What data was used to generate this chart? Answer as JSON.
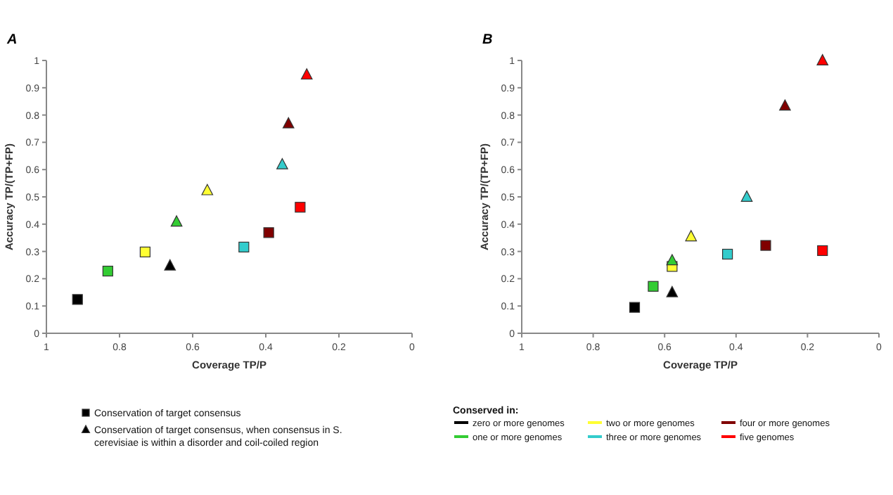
{
  "chart_data": [
    {
      "type": "scatter",
      "title": "A",
      "xlabel": "Coverage TP/P",
      "ylabel": "Accuracy TP/(TP+FP)",
      "xlim": [
        1,
        0
      ],
      "ylim": [
        0,
        1
      ],
      "xticks": [
        1,
        0.8,
        0.6,
        0.4,
        0.2,
        0
      ],
      "yticks": [
        0,
        0.1,
        0.2,
        0.3,
        0.4,
        0.5,
        0.6,
        0.7,
        0.8,
        0.9,
        1
      ],
      "grid": false,
      "legend": "bottom",
      "legend_title": "Conserved in:",
      "annotations": [
        "Conservation of target consensus",
        "Conservation of target consensus, when consensus in S. cerevisiae is within a disorder and coil-coiled region"
      ],
      "series": [
        {
          "name": "zero or more genomes",
          "color": "#000000",
          "marker": "square",
          "x": [
            0.915
          ],
          "values": [
            0.124
          ]
        },
        {
          "name": "one or more genomes",
          "color": "#33cc33",
          "marker": "square",
          "x": [
            0.832
          ],
          "values": [
            0.228
          ]
        },
        {
          "name": "two or more genomes",
          "color": "#ffff33",
          "marker": "square",
          "x": [
            0.73
          ],
          "values": [
            0.298
          ]
        },
        {
          "name": "three or more genomes",
          "color": "#33cccc",
          "marker": "square",
          "x": [
            0.46
          ],
          "values": [
            0.316
          ]
        },
        {
          "name": "four or more genomes",
          "color": "#800000",
          "marker": "square",
          "x": [
            0.392
          ],
          "values": [
            0.369
          ]
        },
        {
          "name": "five genomes",
          "color": "#ff0000",
          "marker": "square",
          "x": [
            0.306
          ],
          "values": [
            0.462
          ]
        },
        {
          "color": "#000000",
          "marker": "triangle",
          "x": [
            0.662
          ],
          "values": [
            0.248
          ]
        },
        {
          "color": "#33cc33",
          "marker": "triangle",
          "x": [
            0.644
          ],
          "values": [
            0.409
          ]
        },
        {
          "color": "#ffff33",
          "marker": "triangle",
          "x": [
            0.56
          ],
          "values": [
            0.524
          ]
        },
        {
          "color": "#33cccc",
          "marker": "triangle",
          "x": [
            0.355
          ],
          "values": [
            0.619
          ]
        },
        {
          "color": "#800000",
          "marker": "triangle",
          "x": [
            0.338
          ],
          "values": [
            0.769
          ]
        },
        {
          "color": "#ff0000",
          "marker": "triangle",
          "x": [
            0.288
          ],
          "values": [
            0.948
          ]
        }
      ]
    },
    {
      "type": "scatter",
      "title": "B",
      "xlabel": "Coverage TP/P",
      "ylabel": "Accuracy TP/(TP+FP)",
      "xlim": [
        1,
        0
      ],
      "ylim": [
        0,
        1
      ],
      "xticks": [
        1,
        0.8,
        0.6,
        0.4,
        0.2,
        0
      ],
      "yticks": [
        0,
        0.1,
        0.2,
        0.3,
        0.4,
        0.5,
        0.6,
        0.7,
        0.8,
        0.9,
        1
      ],
      "grid": false,
      "series": [
        {
          "color": "#000000",
          "marker": "square",
          "x": [
            0.684
          ],
          "values": [
            0.095
          ]
        },
        {
          "color": "#33cc33",
          "marker": "square",
          "x": [
            0.632
          ],
          "values": [
            0.172
          ]
        },
        {
          "color": "#ffff33",
          "marker": "square",
          "x": [
            0.579
          ],
          "values": [
            0.245
          ]
        },
        {
          "color": "#33cccc",
          "marker": "square",
          "x": [
            0.424
          ],
          "values": [
            0.29
          ]
        },
        {
          "color": "#800000",
          "marker": "square",
          "x": [
            0.317
          ],
          "values": [
            0.322
          ]
        },
        {
          "color": "#ff0000",
          "marker": "square",
          "x": [
            0.158
          ],
          "values": [
            0.303
          ]
        },
        {
          "color": "#000000",
          "marker": "triangle",
          "x": [
            0.579
          ],
          "values": [
            0.15
          ]
        },
        {
          "color": "#33cc33",
          "marker": "triangle",
          "x": [
            0.579
          ],
          "values": [
            0.267
          ]
        },
        {
          "color": "#ffff33",
          "marker": "triangle",
          "x": [
            0.526
          ],
          "values": [
            0.355
          ]
        },
        {
          "color": "#33cccc",
          "marker": "triangle",
          "x": [
            0.37
          ],
          "values": [
            0.5
          ]
        },
        {
          "color": "#800000",
          "marker": "triangle",
          "x": [
            0.263
          ],
          "values": [
            0.834
          ]
        },
        {
          "color": "#ff0000",
          "marker": "triangle",
          "x": [
            0.158
          ],
          "values": [
            1.0
          ]
        }
      ]
    }
  ]
}
